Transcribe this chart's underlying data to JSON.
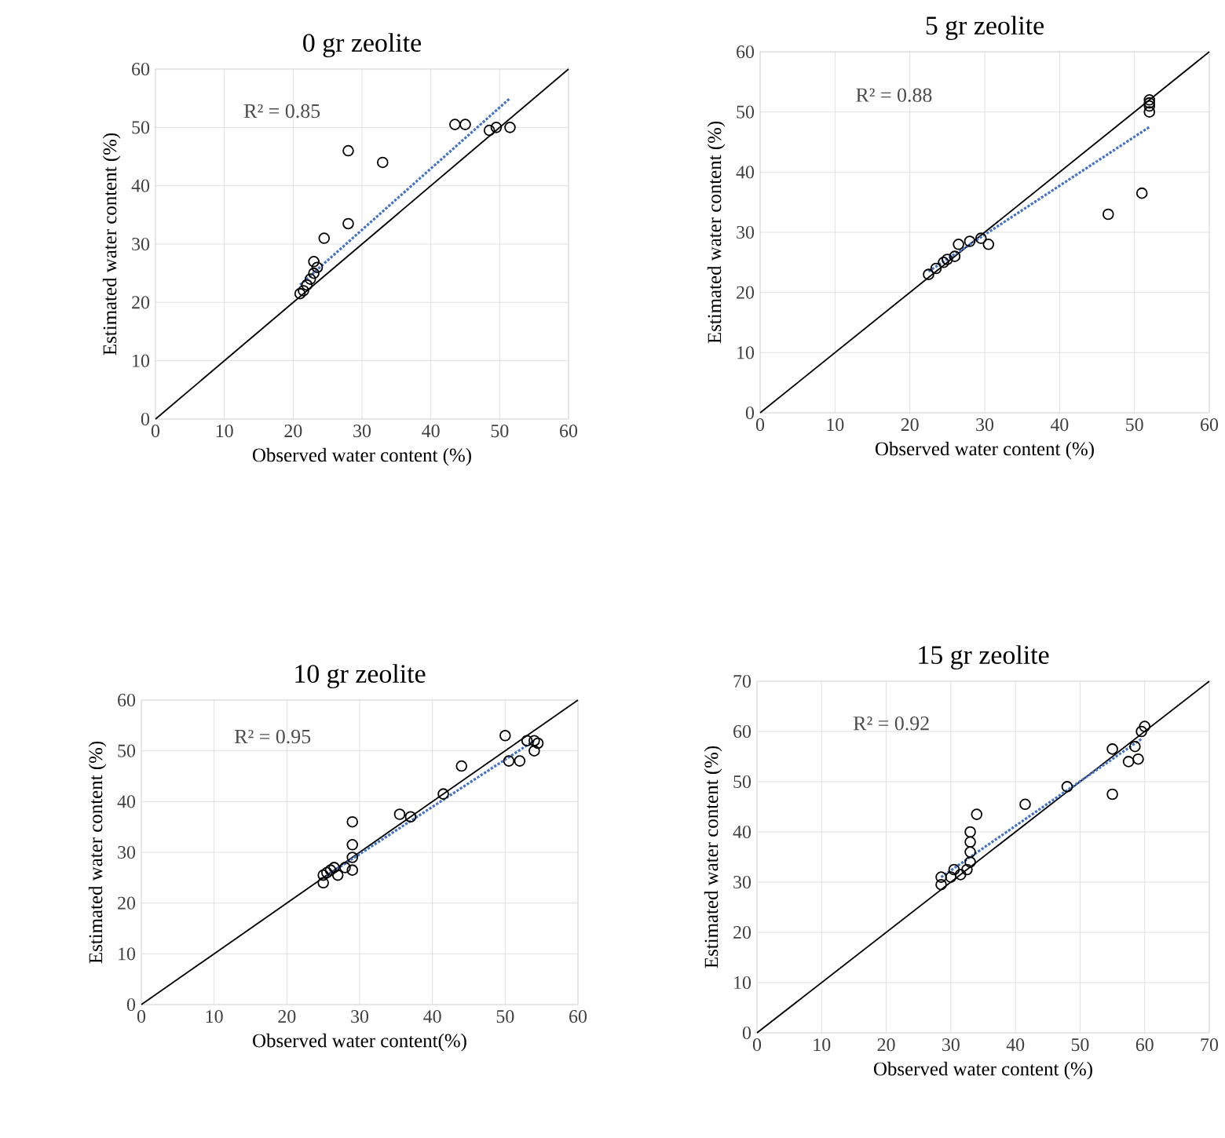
{
  "chart_data": [
    {
      "type": "scatter",
      "title": "0 gr zeolite",
      "xlabel": "Observed water content (%)",
      "ylabel": "Estimated water content (%)",
      "annotations": [
        "R² = 0.85"
      ],
      "xlim": [
        0,
        60
      ],
      "ylim": [
        0,
        60
      ],
      "xticks": [
        0,
        10,
        20,
        30,
        40,
        50,
        60
      ],
      "yticks": [
        0,
        10,
        20,
        30,
        40,
        50,
        60
      ],
      "grid": true,
      "series": [
        {
          "color": "#000000",
          "marker": "circle",
          "x": [
            21,
            21.5,
            22,
            22.5,
            23,
            23.5,
            23,
            24.5,
            28,
            28,
            33,
            43.5,
            45,
            48.5,
            49.5,
            51.5
          ],
          "values": [
            21.5,
            22,
            23,
            24,
            25,
            26,
            27,
            31,
            33.5,
            46,
            44,
            50.5,
            50.5,
            49.5,
            50,
            50
          ]
        },
        {
          "type": "line",
          "color": "#000000",
          "marker": "none",
          "line_style": "solid",
          "x": [
            0,
            60
          ],
          "values": [
            0,
            60
          ]
        },
        {
          "type": "line",
          "color": "#4472c4",
          "marker": "none",
          "line_style": "dotted",
          "x": [
            21,
            51.5
          ],
          "values": [
            23,
            55
          ]
        }
      ]
    },
    {
      "type": "scatter",
      "title": "5 gr zeolite",
      "xlabel": "Observed water content (%)",
      "ylabel": "Estimated water content (%)",
      "annotations": [
        "R² = 0.88"
      ],
      "xlim": [
        0,
        60
      ],
      "ylim": [
        0,
        60
      ],
      "xticks": [
        0,
        10,
        20,
        30,
        40,
        50,
        60
      ],
      "yticks": [
        0,
        10,
        20,
        30,
        40,
        50,
        60
      ],
      "grid": true,
      "series": [
        {
          "color": "#000000",
          "marker": "circle",
          "x": [
            22.5,
            23.5,
            24.5,
            25,
            26,
            26.5,
            28,
            29.5,
            30.5,
            46.5,
            51,
            52,
            52,
            52,
            52
          ],
          "values": [
            23,
            24,
            25,
            25.5,
            26,
            28,
            28.5,
            29,
            28,
            33,
            36.5,
            50,
            51,
            52,
            51.5
          ]
        },
        {
          "type": "line",
          "color": "#000000",
          "marker": "none",
          "line_style": "solid",
          "x": [
            0,
            60
          ],
          "values": [
            0,
            60
          ]
        },
        {
          "type": "line",
          "color": "#4472c4",
          "marker": "none",
          "line_style": "dotted",
          "x": [
            22.5,
            52
          ],
          "values": [
            23.5,
            47.5
          ]
        }
      ]
    },
    {
      "type": "scatter",
      "title": "10 gr zeolite",
      "xlabel": "Observed water content(%)",
      "ylabel": "Estimated water content (%)",
      "annotations": [
        "R² = 0.95"
      ],
      "xlim": [
        0,
        60
      ],
      "ylim": [
        0,
        60
      ],
      "xticks": [
        0,
        10,
        20,
        30,
        40,
        50,
        60
      ],
      "yticks": [
        0,
        10,
        20,
        30,
        40,
        50,
        60
      ],
      "grid": true,
      "series": [
        {
          "color": "#000000",
          "marker": "circle",
          "x": [
            25,
            25,
            25.5,
            26,
            26.5,
            27,
            28,
            29,
            29,
            29,
            29,
            35.5,
            37,
            41.5,
            44,
            50,
            50.5,
            52,
            53,
            54,
            54,
            54.5
          ],
          "values": [
            24,
            25.5,
            26,
            26.5,
            27,
            25.5,
            27,
            26.5,
            29,
            31.5,
            36,
            37.5,
            37,
            41.5,
            47,
            53,
            48,
            48,
            52,
            52,
            50,
            51.5
          ]
        },
        {
          "type": "line",
          "color": "#000000",
          "marker": "none",
          "line_style": "solid",
          "x": [
            0,
            60
          ],
          "values": [
            0,
            60
          ]
        },
        {
          "type": "line",
          "color": "#4472c4",
          "marker": "none",
          "line_style": "dotted",
          "x": [
            25,
            54
          ],
          "values": [
            25,
            52
          ]
        }
      ]
    },
    {
      "type": "scatter",
      "title": "15 gr zeolite",
      "xlabel": "Observed water content (%)",
      "ylabel": "Estimated water content (%)",
      "annotations": [
        "R² = 0.92"
      ],
      "xlim": [
        0,
        70
      ],
      "ylim": [
        0,
        70
      ],
      "xticks": [
        0,
        10,
        20,
        30,
        40,
        50,
        60,
        70
      ],
      "yticks": [
        0,
        10,
        20,
        30,
        40,
        50,
        60,
        70
      ],
      "grid": true,
      "series": [
        {
          "color": "#000000",
          "marker": "circle",
          "x": [
            28.5,
            28.5,
            30,
            30.5,
            31.5,
            32.5,
            33,
            33,
            33,
            33,
            34,
            41.5,
            48,
            55,
            55,
            57.5,
            58.5,
            59,
            59.5,
            60
          ],
          "values": [
            29.5,
            31,
            31,
            32.5,
            31.5,
            32.5,
            34,
            36,
            38,
            40,
            43.5,
            45.5,
            49,
            47.5,
            56.5,
            54,
            57,
            54.5,
            60,
            61
          ]
        },
        {
          "type": "line",
          "color": "#000000",
          "marker": "none",
          "line_style": "solid",
          "x": [
            0,
            70
          ],
          "values": [
            0,
            70
          ]
        },
        {
          "type": "line",
          "color": "#4472c4",
          "marker": "none",
          "line_style": "dotted",
          "x": [
            28.5,
            59.5
          ],
          "values": [
            31,
            58.5
          ]
        }
      ]
    }
  ]
}
